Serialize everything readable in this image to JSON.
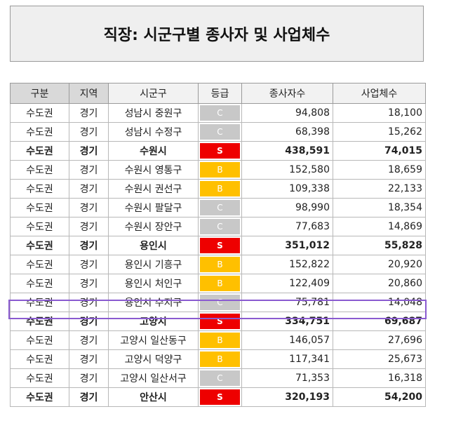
{
  "title": "직장: 시군구별 종사자 및 사업체수",
  "headers": [
    "구분",
    "지역",
    "시군구",
    "등급",
    "종사자수",
    "사업체수"
  ],
  "rows": [
    {
      "region": "수도권",
      "area": "경기",
      "district": "성남시 중원구",
      "grade": "C",
      "workers": "94,808",
      "businesses": "18,100",
      "bold": false
    },
    {
      "region": "수도권",
      "area": "경기",
      "district": "성남시 수정구",
      "grade": "C",
      "workers": "68,398",
      "businesses": "15,262",
      "bold": false
    },
    {
      "region": "수도권",
      "area": "경기",
      "district": "수원시",
      "grade": "S",
      "workers": "438,591",
      "businesses": "74,015",
      "bold": true
    },
    {
      "region": "수도권",
      "area": "경기",
      "district": "수원시 영통구",
      "grade": "B",
      "workers": "152,580",
      "businesses": "18,659",
      "bold": false
    },
    {
      "region": "수도권",
      "area": "경기",
      "district": "수원시 권선구",
      "grade": "B",
      "workers": "109,338",
      "businesses": "22,133",
      "bold": false
    },
    {
      "region": "수도권",
      "area": "경기",
      "district": "수원시 팔달구",
      "grade": "C",
      "workers": "98,990",
      "businesses": "18,354",
      "bold": false
    },
    {
      "region": "수도권",
      "area": "경기",
      "district": "수원시 장안구",
      "grade": "C",
      "workers": "77,683",
      "businesses": "14,869",
      "bold": false
    },
    {
      "region": "수도권",
      "area": "경기",
      "district": "용인시",
      "grade": "S",
      "workers": "351,012",
      "businesses": "55,828",
      "bold": true
    },
    {
      "region": "수도권",
      "area": "경기",
      "district": "용인시 기흥구",
      "grade": "B",
      "workers": "152,822",
      "businesses": "20,920",
      "bold": false
    },
    {
      "region": "수도권",
      "area": "경기",
      "district": "용인시 처인구",
      "grade": "B",
      "workers": "122,409",
      "businesses": "20,860",
      "bold": false
    },
    {
      "region": "수도권",
      "area": "경기",
      "district": "용인시 수지구",
      "grade": "C",
      "workers": "75,781",
      "businesses": "14,048",
      "bold": false,
      "selected": true
    },
    {
      "region": "수도권",
      "area": "경기",
      "district": "고양시",
      "grade": "S",
      "workers": "334,751",
      "businesses": "69,687",
      "bold": true
    },
    {
      "region": "수도권",
      "area": "경기",
      "district": "고양시 일산동구",
      "grade": "B",
      "workers": "146,057",
      "businesses": "27,696",
      "bold": false
    },
    {
      "region": "수도권",
      "area": "경기",
      "district": "고양시 덕양구",
      "grade": "B",
      "workers": "117,341",
      "businesses": "25,673",
      "bold": false
    },
    {
      "region": "수도권",
      "area": "경기",
      "district": "고양시 일산서구",
      "grade": "C",
      "workers": "71,353",
      "businesses": "16,318",
      "bold": false
    },
    {
      "region": "수도권",
      "area": "경기",
      "district": "안산시",
      "grade": "S",
      "workers": "320,193",
      "businesses": "54,200",
      "bold": true
    }
  ],
  "colors": {
    "S": "#ee0000",
    "B": "#ffc000",
    "C": "#c8c8c8",
    "selection": "#8a5bd0"
  }
}
